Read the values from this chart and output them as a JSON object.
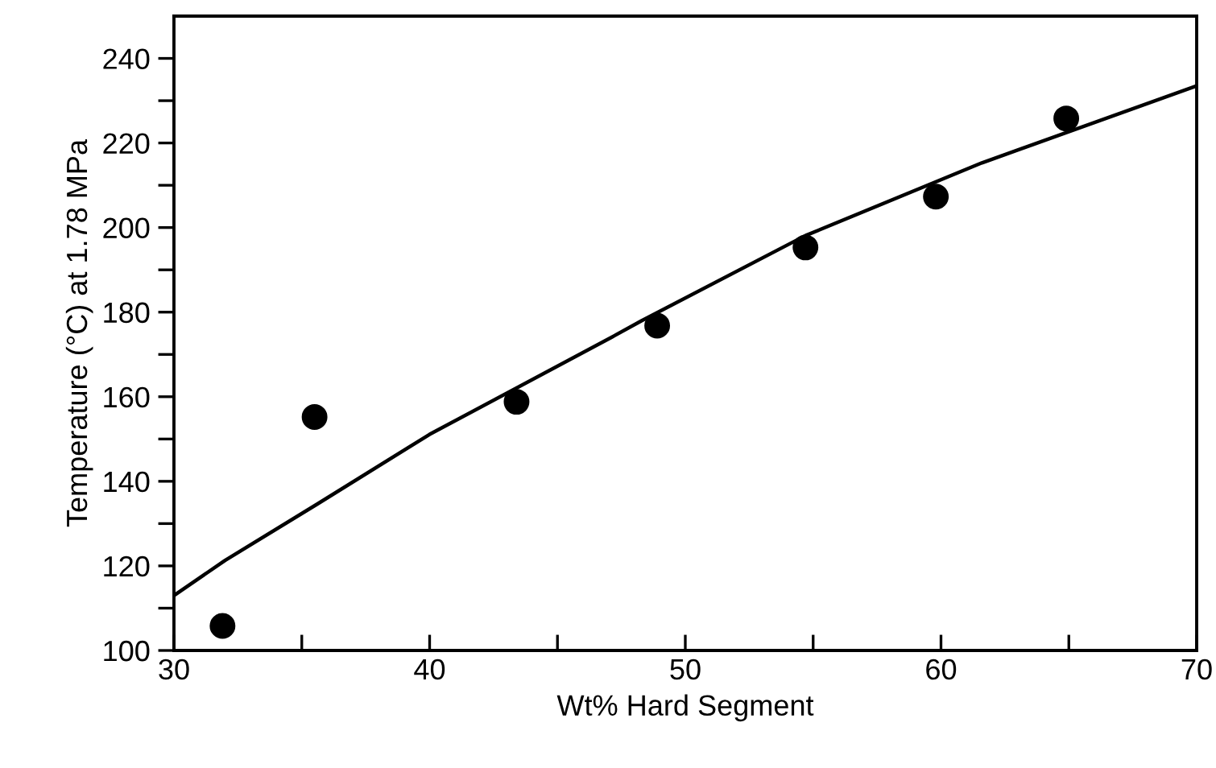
{
  "chart_data": {
    "type": "scatter",
    "xlabel": "Wt% Hard Segment",
    "ylabel": "Temperature (°C) at 1.78 MPa",
    "xlim": [
      30,
      70
    ],
    "ylim": [
      100,
      250
    ],
    "xticks": [
      30,
      {
        "value": 35,
        "label": null
      },
      40,
      {
        "value": 45,
        "label": null
      },
      50,
      {
        "value": 55,
        "label": null
      },
      60,
      {
        "value": 65,
        "label": null
      },
      70
    ],
    "yticks": [
      100,
      {
        "value": 110,
        "label": null
      },
      120,
      {
        "value": 130,
        "label": null
      },
      140,
      {
        "value": 150,
        "label": null
      },
      160,
      {
        "value": 170,
        "label": null
      },
      180,
      {
        "value": 190,
        "label": null
      },
      200,
      {
        "value": 210,
        "label": null
      },
      220,
      {
        "value": 230,
        "label": null
      },
      240
    ],
    "grid": false,
    "legend": false,
    "series": [
      {
        "color": "#000000",
        "marker": "circle",
        "x": [
          31.9,
          35.5,
          43.4,
          48.9,
          54.7,
          59.8,
          64.9
        ],
        "values": [
          105.8,
          155.2,
          158.8,
          176.8,
          195.3,
          207.3,
          225.8
        ]
      },
      {
        "type": "line",
        "color": "#000000",
        "marker": "none",
        "line_style": "solid",
        "x": [
          30,
          32,
          35.6,
          40,
          47.1,
          48.3,
          54.7,
          61.6,
          70
        ],
        "values": [
          113,
          121.3,
          134.6,
          151.1,
          174,
          178,
          198.1,
          215.3,
          233.5
        ]
      }
    ]
  }
}
